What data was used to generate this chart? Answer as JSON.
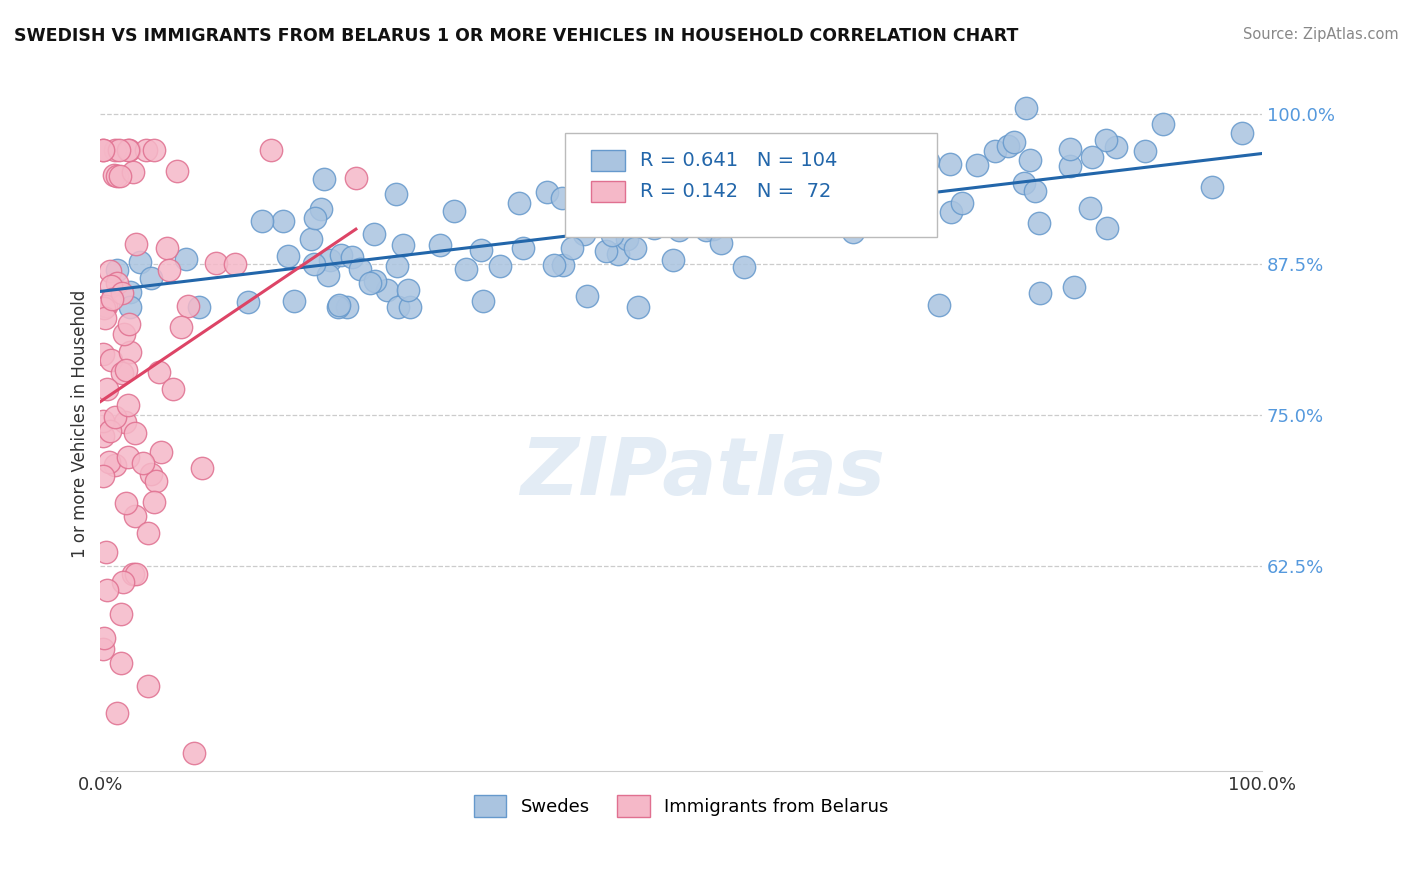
{
  "title": "SWEDISH VS IMMIGRANTS FROM BELARUS 1 OR MORE VEHICLES IN HOUSEHOLD CORRELATION CHART",
  "source": "Source: ZipAtlas.com",
  "ylabel": "1 or more Vehicles in Household",
  "xlim": [
    0,
    1
  ],
  "ylim": [
    0.455,
    1.03
  ],
  "yticks": [
    0.625,
    0.75,
    0.875,
    1.0
  ],
  "ytick_labels": [
    "62.5%",
    "75.0%",
    "87.5%",
    "100.0%"
  ],
  "swedes_color": "#aac4e0",
  "swedes_edge_color": "#6699cc",
  "belarus_color": "#f5b8c8",
  "belarus_edge_color": "#e07090",
  "trendline_blue": "#2266aa",
  "trendline_pink": "#dd4466",
  "tick_color": "#5599dd",
  "R_swedes": 0.641,
  "N_swedes": 104,
  "R_belarus": 0.142,
  "N_belarus": 72
}
